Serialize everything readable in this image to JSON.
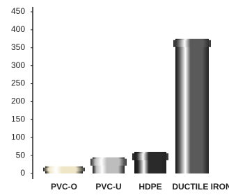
{
  "chart_data": {
    "type": "bar",
    "categories": [
      "PVC-O",
      "PVC-U",
      "HDPE",
      "DUCTILE IRON"
    ],
    "values": [
      20,
      45,
      60,
      375
    ],
    "colors": [
      "#efe6c8",
      "#bdbdbd",
      "#2a2a2a",
      "#5a5a5a"
    ],
    "ylim": [
      0,
      450
    ],
    "yticks": [
      0,
      50,
      100,
      150,
      200,
      250,
      300,
      350,
      400,
      450
    ],
    "grid": false
  }
}
